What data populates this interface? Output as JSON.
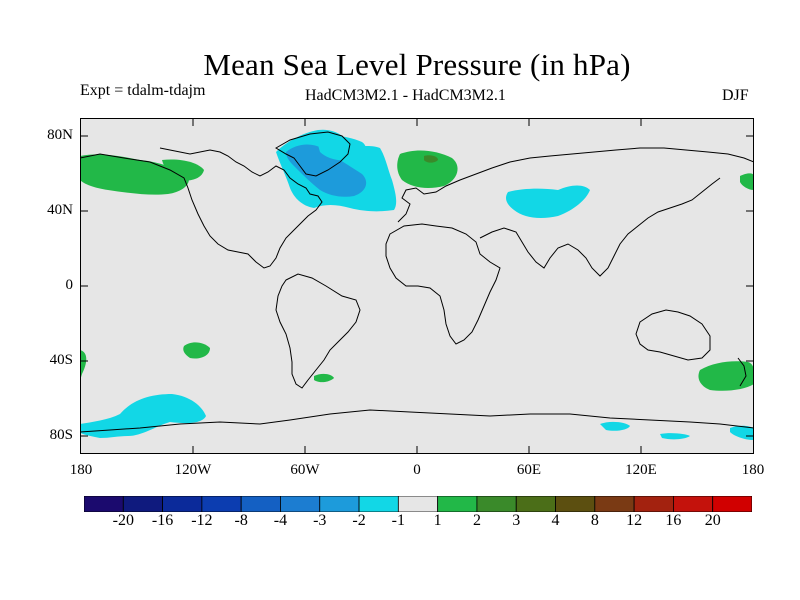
{
  "title": "Mean Sea Level Pressure (in hPa)",
  "subtitle_left": "Expt = tdalm-tdajm",
  "subtitle_center": "HadCM3M2.1 - HadCM3M2.1",
  "subtitle_right": "DJF",
  "lat_labels": [
    "80N",
    "40N",
    "0",
    "40S",
    "80S"
  ],
  "lon_labels": [
    "180",
    "120W",
    "60W",
    "0",
    "60E",
    "120E",
    "180"
  ],
  "colorbar": {
    "labels": [
      "-20",
      "-16",
      "-12",
      "-8",
      "-4",
      "-3",
      "-2",
      "-1",
      "1",
      "2",
      "3",
      "4",
      "8",
      "12",
      "16",
      "20"
    ],
    "colors": [
      "#1b0a6e",
      "#0f1a7e",
      "#0b2a9a",
      "#0c3db0",
      "#1460c3",
      "#1c7dd1",
      "#1d9bdb",
      "#12d7e6",
      "#e6e6e6",
      "#22b848",
      "#3a8a2a",
      "#4b6e18",
      "#5c4f10",
      "#7a3a14",
      "#a3220f",
      "#c4120c",
      "#d10000"
    ]
  },
  "colors": {
    "map_background": "#e6e6e6",
    "positive_1_2": "#22b848",
    "negative_1_2": "#12d7e6",
    "negative_2_3": "#1d9bdb",
    "positive_2_3": "#3a8a2a"
  }
}
